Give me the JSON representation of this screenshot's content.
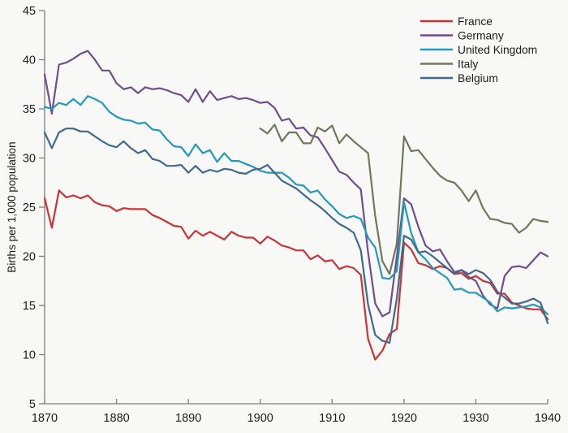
{
  "chart_data": {
    "type": "line",
    "title": "",
    "xlabel": "",
    "ylabel": "Births per 1,000 population",
    "x_start": 1870,
    "x_end": 1940,
    "ylim": [
      5,
      45
    ],
    "yticks": [
      5,
      10,
      15,
      20,
      25,
      30,
      35,
      40,
      45
    ],
    "xticks": [
      1870,
      1880,
      1890,
      1900,
      1910,
      1920,
      1930,
      1940
    ],
    "grid": false,
    "legend_position": "top-right",
    "background_color": "#f8f8f6",
    "axis_color": "#7e7e7e",
    "text_color": "#1c1c1c",
    "series": [
      {
        "name": "France",
        "color": "#cb3335",
        "start_year": 1870,
        "values": [
          25.9,
          22.9,
          26.7,
          26.0,
          26.2,
          25.9,
          26.2,
          25.5,
          25.2,
          25.1,
          24.6,
          24.9,
          24.8,
          24.8,
          24.8,
          24.2,
          23.9,
          23.5,
          23.1,
          23.0,
          21.8,
          22.6,
          22.1,
          22.5,
          22.1,
          21.7,
          22.5,
          22.1,
          21.9,
          21.9,
          21.3,
          22.0,
          21.6,
          21.1,
          20.9,
          20.6,
          20.6,
          19.7,
          20.1,
          19.5,
          19.6,
          18.7,
          19.0,
          18.8,
          18.1,
          11.6,
          9.5,
          10.4,
          12.1,
          12.6,
          21.4,
          20.7,
          19.3,
          19.1,
          18.7,
          19.0,
          18.8,
          18.2,
          18.3,
          17.7,
          18.0,
          17.5,
          17.3,
          16.2,
          16.2,
          15.3,
          15.0,
          14.7,
          14.6,
          14.6,
          13.6
        ]
      },
      {
        "name": "Germany",
        "color": "#6f4e8e",
        "start_year": 1870,
        "values": [
          38.5,
          34.5,
          39.5,
          39.7,
          40.1,
          40.6,
          40.9,
          40.0,
          38.9,
          38.9,
          37.6,
          37.0,
          37.2,
          36.6,
          37.2,
          37.0,
          37.1,
          36.9,
          36.6,
          36.4,
          35.7,
          37.0,
          35.7,
          36.8,
          35.9,
          36.1,
          36.3,
          36.0,
          36.1,
          35.9,
          35.6,
          35.7,
          35.1,
          33.8,
          34.0,
          33.0,
          33.1,
          32.3,
          32.1,
          31.0,
          29.8,
          28.6,
          28.3,
          27.5,
          26.8,
          20.4,
          15.2,
          13.9,
          14.3,
          20.0,
          25.9,
          25.3,
          23.0,
          21.1,
          20.5,
          20.7,
          19.5,
          18.4,
          18.6,
          17.9,
          17.5,
          16.0,
          15.1,
          14.7,
          18.0,
          18.9,
          19.0,
          18.8,
          19.6,
          20.4,
          20.0
        ]
      },
      {
        "name": "United Kingdom",
        "color": "#2399bc",
        "start_year": 1870,
        "values": [
          35.2,
          35.0,
          35.6,
          35.4,
          36.0,
          35.4,
          36.3,
          36.0,
          35.6,
          34.7,
          34.2,
          33.9,
          33.8,
          33.5,
          33.6,
          32.9,
          32.8,
          31.9,
          31.2,
          31.1,
          30.2,
          31.4,
          30.5,
          30.8,
          29.6,
          30.5,
          29.7,
          29.7,
          29.4,
          29.1,
          28.7,
          28.5,
          28.5,
          28.5,
          28.0,
          27.3,
          27.2,
          26.5,
          26.7,
          25.8,
          25.1,
          24.3,
          23.9,
          24.1,
          23.8,
          21.9,
          20.9,
          17.8,
          17.7,
          18.5,
          25.5,
          22.4,
          20.4,
          19.7,
          18.8,
          18.3,
          17.8,
          16.6,
          16.7,
          16.3,
          16.3,
          15.8,
          15.3,
          14.4,
          14.8,
          14.7,
          14.8,
          14.9,
          15.1,
          14.8,
          14.1
        ]
      },
      {
        "name": "Italy",
        "color": "#70785a",
        "start_year": 1900,
        "values": [
          33.0,
          32.5,
          33.4,
          31.7,
          32.6,
          32.6,
          31.5,
          31.5,
          33.1,
          32.7,
          33.3,
          31.5,
          32.4,
          31.7,
          31.1,
          30.5,
          24.1,
          19.5,
          18.2,
          21.3,
          32.2,
          30.7,
          30.8,
          29.9,
          29.0,
          28.2,
          27.7,
          27.5,
          26.7,
          25.6,
          26.7,
          24.9,
          23.8,
          23.7,
          23.4,
          23.3,
          22.4,
          22.9,
          23.8,
          23.6,
          23.5
        ]
      },
      {
        "name": "Belgium",
        "color": "#41698c",
        "start_year": 1870,
        "values": [
          32.6,
          31.0,
          32.6,
          33.0,
          33.0,
          32.7,
          32.7,
          32.2,
          31.7,
          31.3,
          31.1,
          31.7,
          31.0,
          30.5,
          30.8,
          29.9,
          29.7,
          29.2,
          29.2,
          29.3,
          28.5,
          29.2,
          28.5,
          28.8,
          28.6,
          28.9,
          28.8,
          28.5,
          28.4,
          28.8,
          28.9,
          29.3,
          28.5,
          27.7,
          27.3,
          26.9,
          26.3,
          25.7,
          25.2,
          24.6,
          23.9,
          23.3,
          22.9,
          22.4,
          20.6,
          15.1,
          12.0,
          11.4,
          11.2,
          15.7,
          22.1,
          21.7,
          20.4,
          20.5,
          20.0,
          19.4,
          18.8,
          18.2,
          18.6,
          18.2,
          18.6,
          18.3,
          17.6,
          16.4,
          15.8,
          15.2,
          15.2,
          15.4,
          15.7,
          15.3,
          13.2
        ]
      }
    ]
  }
}
